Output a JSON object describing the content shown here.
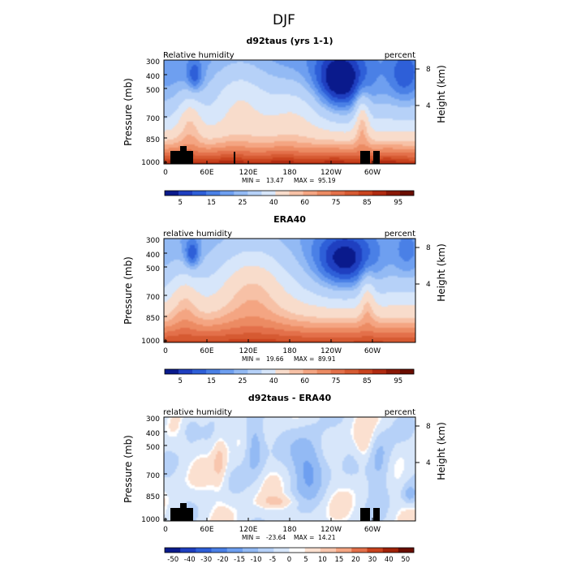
{
  "figure": {
    "season": "DJF"
  },
  "chart_data": [
    {
      "type": "heatmap",
      "title": "d92taus (yrs 1-1)",
      "left_label": "Relative humidity",
      "right_label": "percent",
      "ylabel": "Pressure (mb)",
      "y2label": "Height (km)",
      "xticks": [
        "0",
        "60E",
        "120E",
        "180",
        "120W",
        "60W"
      ],
      "yticks": [
        "300",
        "400",
        "500",
        "700",
        "850",
        "1000"
      ],
      "y2ticks": [
        "8",
        "4"
      ],
      "min_label": "MIN =",
      "min_value": "13.47",
      "max_label": "MAX =",
      "max_value": "95.19",
      "colorbar_labels": [
        "5",
        "15",
        "25",
        "40",
        "60",
        "75",
        "85",
        "95"
      ],
      "colorbar_colors": [
        "#0a1a8c",
        "#1f3fc0",
        "#2e5fd8",
        "#4a80e6",
        "#6e9ff0",
        "#93baf4",
        "#b6d1f8",
        "#d7e6fa",
        "#f8dccb",
        "#f7c1a6",
        "#f4a582",
        "#ec8b63",
        "#e3704a",
        "#d65a32",
        "#c9431e",
        "#b02a10",
        "#8a1806",
        "#6a0d00"
      ],
      "regime": "model",
      "terrain": true
    },
    {
      "type": "heatmap",
      "title": "ERA40",
      "left_label": "relative humidity",
      "right_label": "percent",
      "ylabel": "Pressure (mb)",
      "y2label": "Height (km)",
      "xticks": [
        "0",
        "60E",
        "120E",
        "180",
        "120W",
        "60W"
      ],
      "yticks": [
        "300",
        "400",
        "500",
        "700",
        "850",
        "1000"
      ],
      "y2ticks": [
        "8",
        "4"
      ],
      "min_label": "MIN =",
      "min_value": "19.66",
      "max_label": "MAX =",
      "max_value": "89.91",
      "colorbar_labels": [
        "5",
        "15",
        "25",
        "40",
        "60",
        "75",
        "85",
        "95"
      ],
      "colorbar_colors": [
        "#0a1a8c",
        "#1f3fc0",
        "#2e5fd8",
        "#4a80e6",
        "#6e9ff0",
        "#93baf4",
        "#b6d1f8",
        "#d7e6fa",
        "#f8dccb",
        "#f7c1a6",
        "#f4a582",
        "#ec8b63",
        "#e3704a",
        "#d65a32",
        "#c9431e",
        "#b02a10",
        "#8a1806",
        "#6a0d00"
      ],
      "regime": "obs",
      "terrain": false
    },
    {
      "type": "heatmap",
      "title": "d92taus - ERA40",
      "left_label": "relative humidity",
      "right_label": "percent",
      "ylabel": "Pressure (mb)",
      "y2label": "Height (km)",
      "xticks": [
        "0",
        "60E",
        "120E",
        "180",
        "120W",
        "60W"
      ],
      "yticks": [
        "300",
        "400",
        "500",
        "700",
        "850",
        "1000"
      ],
      "y2ticks": [
        "8",
        "4"
      ],
      "min_label": "MIN =",
      "min_value": "-23.64",
      "max_label": "MAX =",
      "max_value": "14.21",
      "colorbar_labels": [
        "-50",
        "-40",
        "-30",
        "-20",
        "-15",
        "-10",
        "-5",
        "0",
        "5",
        "10",
        "15",
        "20",
        "30",
        "40",
        "50"
      ],
      "colorbar_colors": [
        "#0a1a8c",
        "#1f3fc0",
        "#2e5fd8",
        "#4a80e6",
        "#6e9ff0",
        "#93baf4",
        "#b6d1f8",
        "#d7e6fa",
        "#ffffff",
        "#fbe0d0",
        "#f8c6ae",
        "#f4a582",
        "#e3704a",
        "#c9431e",
        "#a02208",
        "#6a0d00"
      ],
      "regime": "diff",
      "terrain": true
    }
  ]
}
